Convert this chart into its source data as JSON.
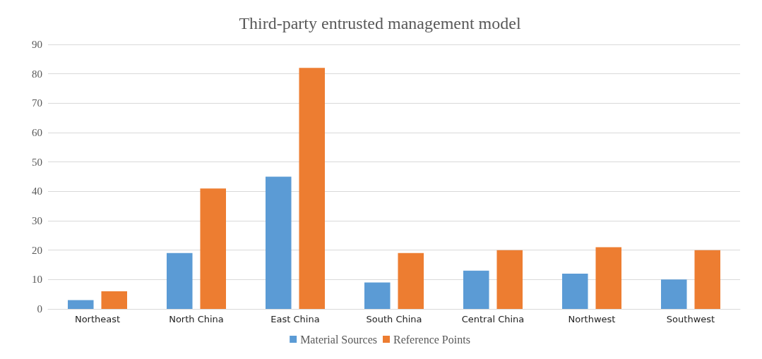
{
  "chart_data": {
    "type": "bar",
    "title": "Third-party entrusted management model",
    "categories": [
      "Northeast",
      "North China",
      "East China",
      "South China",
      "Central China",
      "Northwest",
      "Southwest"
    ],
    "series": [
      {
        "name": "Material Sources",
        "color": "#5b9bd5",
        "values": [
          3,
          19,
          45,
          9,
          13,
          12,
          10
        ]
      },
      {
        "name": "Reference Points",
        "color": "#ed7d31",
        "values": [
          6,
          41,
          82,
          19,
          20,
          21,
          20
        ]
      }
    ],
    "ylim": [
      0,
      90
    ],
    "yticks": [
      0,
      10,
      20,
      30,
      40,
      50,
      60,
      70,
      80,
      90
    ],
    "grid": "y",
    "legend": "bottom"
  }
}
